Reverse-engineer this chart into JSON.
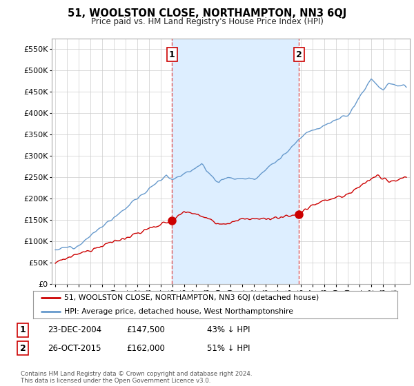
{
  "title": "51, WOOLSTON CLOSE, NORTHAMPTON, NN3 6QJ",
  "subtitle": "Price paid vs. HM Land Registry's House Price Index (HPI)",
  "legend_line1": "51, WOOLSTON CLOSE, NORTHAMPTON, NN3 6QJ (detached house)",
  "legend_line2": "HPI: Average price, detached house, West Northamptonshire",
  "table_rows": [
    {
      "num": 1,
      "date": "23-DEC-2004",
      "price": "£147,500",
      "pct": "43% ↓ HPI"
    },
    {
      "num": 2,
      "date": "26-OCT-2015",
      "price": "£162,000",
      "pct": "51% ↓ HPI"
    }
  ],
  "footnote": "Contains HM Land Registry data © Crown copyright and database right 2024.\nThis data is licensed under the Open Government Licence v3.0.",
  "hpi_color": "#6699cc",
  "price_color": "#cc0000",
  "marker_color": "#cc0000",
  "vline_color": "#dd4444",
  "shade_color": "#ddeeff",
  "ylim": [
    0,
    575000
  ],
  "yticks": [
    0,
    50000,
    100000,
    150000,
    200000,
    250000,
    300000,
    350000,
    400000,
    450000,
    500000,
    550000
  ],
  "ytick_labels": [
    "£0",
    "£50K",
    "£100K",
    "£150K",
    "£200K",
    "£250K",
    "£300K",
    "£350K",
    "£400K",
    "£450K",
    "£500K",
    "£550K"
  ],
  "sale1_year": 2004.97,
  "sale1_price": 147500,
  "sale2_year": 2015.82,
  "sale2_price": 162000,
  "xlim_left": 1994.7,
  "xlim_right": 2025.3,
  "background_color": "#ffffff",
  "grid_color": "#cccccc"
}
